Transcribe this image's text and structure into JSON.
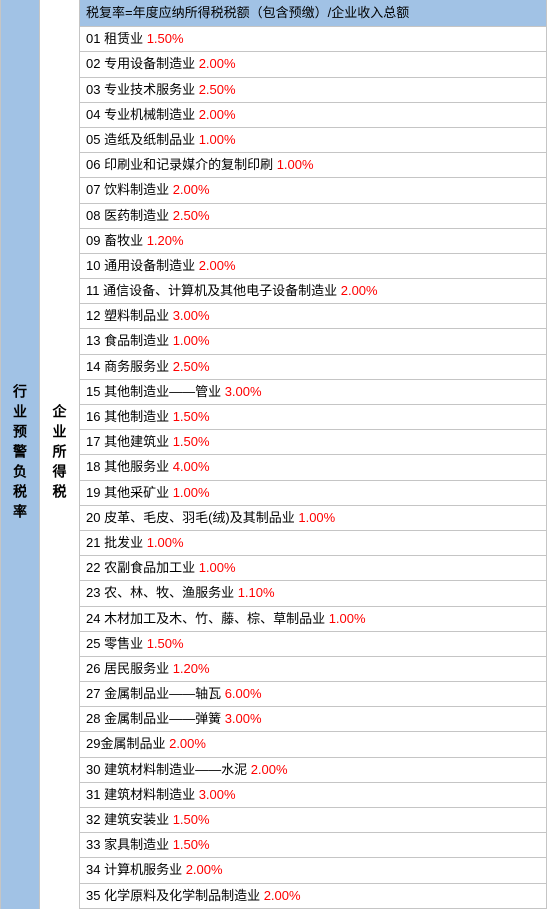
{
  "leftColumn": {
    "label": "行业预警负税率"
  },
  "midColumn": {
    "label": "企业所得税"
  },
  "header": {
    "text": "税复率=年度应纳所得税税额（包含预缴）/企业收入总额"
  },
  "rows": [
    {
      "num": "01",
      "label": "租赁业",
      "pct": "1.50%"
    },
    {
      "num": "02",
      "label": "专用设备制造业",
      "pct": "2.00%"
    },
    {
      "num": "03",
      "label": "专业技术服务业",
      "pct": "2.50%"
    },
    {
      "num": "04",
      "label": "专业机械制造业",
      "pct": "2.00%"
    },
    {
      "num": "05",
      "label": "造纸及纸制品业",
      "pct": "1.00%"
    },
    {
      "num": "06",
      "label": "印刷业和记录媒介的复制印刷",
      "pct": "1.00%"
    },
    {
      "num": "07",
      "label": "饮料制造业",
      "pct": "2.00%"
    },
    {
      "num": "08",
      "label": "医药制造业",
      "pct": "2.50%"
    },
    {
      "num": "09",
      "label": "畜牧业",
      "pct": "1.20%"
    },
    {
      "num": "10",
      "label": "通用设备制造业",
      "pct": "2.00%"
    },
    {
      "num": "11",
      "label": "通信设备、计算机及其他电子设备制造业",
      "pct": "2.00%"
    },
    {
      "num": "12",
      "label": "塑料制品业",
      "pct": "3.00%"
    },
    {
      "num": "13",
      "label": "食品制造业",
      "pct": "1.00%"
    },
    {
      "num": "14",
      "label": "商务服务业",
      "pct": "2.50%"
    },
    {
      "num": "15",
      "label": "其他制造业——管业",
      "pct": "3.00%"
    },
    {
      "num": "16",
      "label": "其他制造业",
      "pct": "1.50%"
    },
    {
      "num": "17",
      "label": "其他建筑业",
      "pct": "1.50%"
    },
    {
      "num": "18",
      "label": "其他服务业",
      "pct": "4.00%"
    },
    {
      "num": "19",
      "label": "其他采矿业",
      "pct": "1.00%"
    },
    {
      "num": "20",
      "label": "皮革、毛皮、羽毛(绒)及其制品业",
      "pct": "1.00%"
    },
    {
      "num": "21",
      "label": "批发业",
      "pct": "1.00%"
    },
    {
      "num": "22",
      "label": "农副食品加工业",
      "pct": "1.00%"
    },
    {
      "num": "23",
      "label": "农、林、牧、渔服务业",
      "pct": "1.10%"
    },
    {
      "num": "24",
      "label": "木材加工及木、竹、藤、棕、草制品业",
      "pct": "1.00%"
    },
    {
      "num": "25",
      "label": "零售业",
      "pct": "1.50%"
    },
    {
      "num": "26",
      "label": "居民服务业",
      "pct": "1.20%"
    },
    {
      "num": "27",
      "label": "金属制品业——轴瓦",
      "pct": "6.00%"
    },
    {
      "num": "28",
      "label": "金属制品业——弹簧",
      "pct": "3.00%"
    },
    {
      "num": "29",
      "label": "金属制品业",
      "pct": "2.00%",
      "nospace": true
    },
    {
      "num": "30",
      "label": "建筑材料制造业——水泥",
      "pct": "2.00%"
    },
    {
      "num": "31",
      "label": "建筑材料制造业",
      "pct": "3.00%"
    },
    {
      "num": "32",
      "label": "建筑安装业",
      "pct": "1.50%"
    },
    {
      "num": "33",
      "label": "家具制造业",
      "pct": "1.50%"
    },
    {
      "num": "34",
      "label": "计算机服务业",
      "pct": "2.00%"
    },
    {
      "num": "35",
      "label": "化学原料及化学制品制造业",
      "pct": "2.00%"
    }
  ],
  "style": {
    "leftBg": "#a1c2e5",
    "headerBg": "#a1c2e5",
    "rowBg": "#ffffff",
    "borderColor": "#c5c5c5",
    "textColor": "#000000",
    "pctColor": "#ff0000",
    "fontSize": 13
  }
}
